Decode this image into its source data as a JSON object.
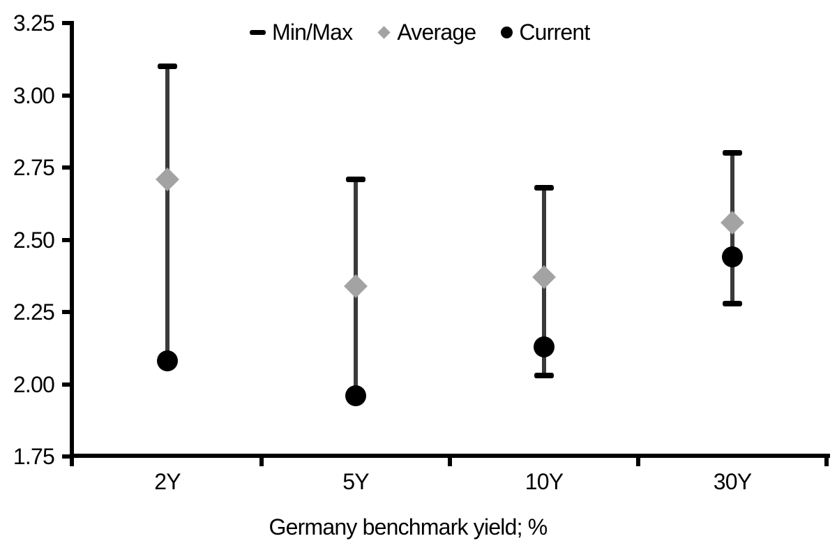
{
  "chart_data": {
    "type": "scatter",
    "title": "Germany benchmark yield; %",
    "categories": [
      "2Y",
      "5Y",
      "10Y",
      "30Y"
    ],
    "series": [
      {
        "name": "Min/Max",
        "type": "range",
        "marker": "dash-cap",
        "max": [
          3.1,
          2.71,
          2.68,
          2.8
        ],
        "min": [
          2.08,
          1.96,
          2.03,
          2.28
        ]
      },
      {
        "name": "Average",
        "type": "point",
        "marker": "diamond",
        "values": [
          2.71,
          2.34,
          2.37,
          2.56
        ]
      },
      {
        "name": "Current",
        "type": "point",
        "marker": "circle",
        "values": [
          2.08,
          1.96,
          2.13,
          2.44
        ]
      }
    ],
    "ylim": [
      1.75,
      3.25
    ],
    "y_ticks": [
      3.25,
      3.0,
      2.75,
      2.5,
      2.25,
      2.0,
      1.75
    ],
    "y_tick_format": "0.00",
    "grid": false,
    "legend_position": "top-center",
    "colors": {
      "range_line": "#3a3a3a",
      "minmax_cap": "#000000",
      "average": "#a3a3a3",
      "current": "#000000",
      "axis": "#000000",
      "text": "#000000",
      "background": "#ffffff"
    }
  }
}
